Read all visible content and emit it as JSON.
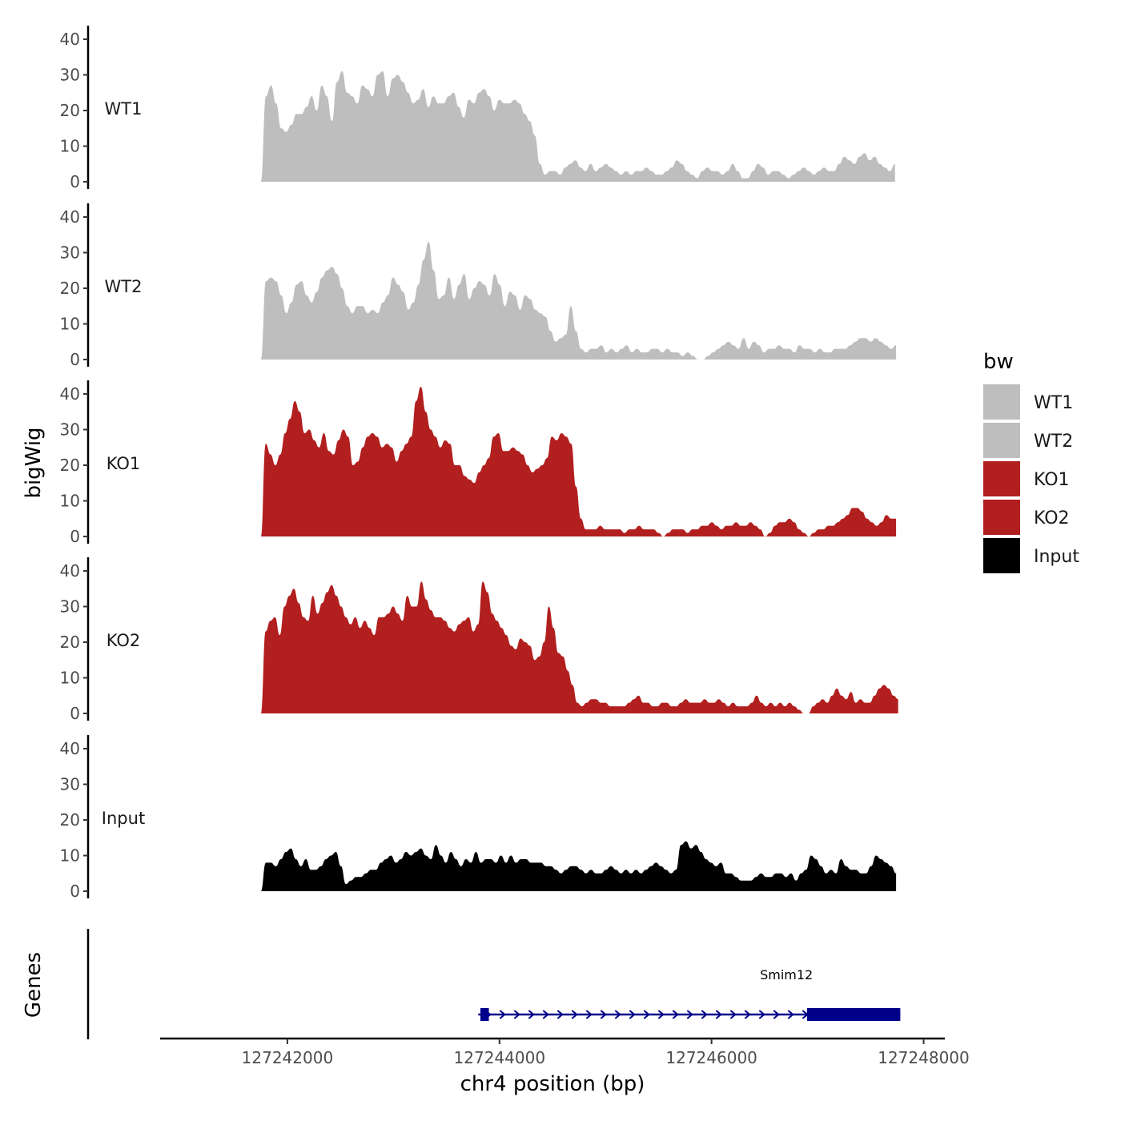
{
  "chart_data": {
    "type": "area",
    "xlabel": "chr4 position (bp)",
    "ylabel": "bigWig",
    "genes_label": "Genes",
    "x_ticks": [
      127242000,
      127244000,
      127246000,
      127248000
    ],
    "x_tick_labels": [
      "127242000",
      "127244000",
      "127246000",
      "127248000"
    ],
    "y_ticks": [
      0,
      10,
      20,
      30,
      40
    ],
    "y_tick_labels": [
      "0",
      "10",
      "20",
      "30",
      "40"
    ],
    "ylim": [
      0,
      44
    ],
    "xlim": [
      127240800,
      127248200
    ],
    "legend": {
      "title": "bw",
      "position": "right",
      "entries": [
        {
          "label": "WT1",
          "color": "#bebebe"
        },
        {
          "label": "WT2",
          "color": "#bebebe"
        },
        {
          "label": "KO1",
          "color": "#b21f1f"
        },
        {
          "label": "KO2",
          "color": "#b21f1f"
        },
        {
          "label": "Input",
          "color": "#000000"
        }
      ]
    },
    "series": [
      {
        "name": "WT1",
        "color": "#bebebe",
        "x_start": 127241750,
        "x_end": 127247730,
        "values": [
          0,
          24,
          27,
          22,
          15,
          14,
          16,
          19,
          19,
          21,
          24,
          20,
          27,
          24,
          17,
          28,
          31,
          25,
          24,
          22,
          27,
          26,
          24,
          30,
          31,
          24,
          29,
          30,
          28,
          25,
          22,
          23,
          26,
          21,
          24,
          22,
          22,
          24,
          25,
          21,
          18,
          23,
          22,
          25,
          26,
          24,
          20,
          23,
          22,
          22,
          23,
          22,
          19,
          17,
          13,
          5,
          2,
          3,
          3,
          2,
          4,
          5,
          6,
          4,
          3,
          5,
          3,
          4,
          5,
          4,
          3,
          2,
          3,
          2,
          3,
          3,
          4,
          3,
          2,
          2,
          3,
          4,
          6,
          5,
          3,
          2,
          1,
          3,
          4,
          3,
          3,
          2,
          3,
          5,
          3,
          1,
          1,
          3,
          5,
          4,
          2,
          3,
          3,
          2,
          1,
          2,
          3,
          4,
          3,
          2,
          3,
          4,
          3,
          3,
          5,
          7,
          6,
          5,
          7,
          8,
          6,
          7,
          5,
          4,
          3,
          5
        ]
      },
      {
        "name": "WT2",
        "color": "#bebebe",
        "x_start": 127241750,
        "x_end": 127247740,
        "values": [
          0,
          22,
          23,
          22,
          18,
          13,
          16,
          21,
          22,
          18,
          16,
          19,
          23,
          25,
          26,
          24,
          20,
          15,
          13,
          15,
          15,
          13,
          14,
          13,
          16,
          18,
          23,
          21,
          19,
          14,
          16,
          21,
          28,
          33,
          25,
          17,
          18,
          23,
          17,
          21,
          24,
          17,
          20,
          22,
          21,
          18,
          24,
          21,
          15,
          19,
          18,
          14,
          18,
          17,
          14,
          13,
          12,
          8,
          5,
          6,
          7,
          15,
          8,
          3,
          2,
          3,
          3,
          4,
          2,
          3,
          2,
          3,
          4,
          2,
          3,
          2,
          2,
          3,
          3,
          2,
          3,
          2,
          2,
          1,
          2,
          1,
          0,
          0,
          1,
          2,
          3,
          4,
          5,
          4,
          3,
          6,
          3,
          5,
          4,
          2,
          3,
          3,
          4,
          3,
          3,
          2,
          4,
          3,
          3,
          2,
          3,
          2,
          2,
          3,
          3,
          3,
          4,
          5,
          6,
          6,
          5,
          6,
          5,
          4,
          3,
          4
        ]
      },
      {
        "name": "KO1",
        "color": "#b21f1f",
        "x_start": 127241750,
        "x_end": 127247740,
        "values": [
          0,
          26,
          23,
          20,
          23,
          29,
          33,
          38,
          35,
          29,
          30,
          27,
          25,
          29,
          24,
          23,
          27,
          30,
          28,
          20,
          21,
          25,
          28,
          29,
          28,
          25,
          26,
          25,
          21,
          24,
          26,
          28,
          38,
          42,
          35,
          30,
          28,
          25,
          27,
          26,
          20,
          20,
          17,
          16,
          15,
          18,
          20,
          22,
          28,
          29,
          24,
          24,
          25,
          24,
          23,
          20,
          18,
          19,
          20,
          22,
          28,
          27,
          29,
          28,
          26,
          14,
          5,
          2,
          2,
          2,
          3,
          2,
          2,
          2,
          2,
          1,
          2,
          2,
          3,
          2,
          2,
          2,
          1,
          0,
          1,
          2,
          2,
          2,
          1,
          2,
          2,
          3,
          3,
          4,
          3,
          2,
          3,
          3,
          4,
          3,
          3,
          4,
          3,
          2,
          0,
          1,
          3,
          4,
          4,
          5,
          4,
          2,
          1,
          0,
          1,
          2,
          2,
          3,
          3,
          4,
          5,
          6,
          8,
          8,
          7,
          5,
          4,
          3,
          4,
          6,
          5,
          5
        ]
      },
      {
        "name": "KO2",
        "color": "#b21f1f",
        "x_start": 127241750,
        "x_end": 127247760,
        "values": [
          0,
          23,
          26,
          27,
          22,
          30,
          33,
          35,
          31,
          27,
          26,
          33,
          28,
          31,
          34,
          36,
          33,
          30,
          27,
          25,
          27,
          24,
          26,
          24,
          22,
          27,
          27,
          28,
          30,
          28,
          26,
          33,
          30,
          30,
          37,
          32,
          29,
          27,
          27,
          26,
          24,
          23,
          25,
          26,
          27,
          23,
          25,
          37,
          34,
          28,
          26,
          24,
          22,
          19,
          18,
          21,
          20,
          19,
          15,
          16,
          20,
          30,
          24,
          17,
          16,
          12,
          8,
          3,
          2,
          3,
          4,
          4,
          3,
          3,
          2,
          2,
          2,
          2,
          3,
          4,
          5,
          3,
          3,
          2,
          2,
          3,
          3,
          2,
          2,
          3,
          4,
          3,
          3,
          3,
          4,
          3,
          3,
          4,
          3,
          2,
          3,
          2,
          2,
          2,
          3,
          5,
          3,
          2,
          3,
          2,
          3,
          2,
          3,
          2,
          1,
          0,
          0,
          2,
          3,
          4,
          3,
          5,
          7,
          5,
          4,
          6,
          3,
          4,
          3,
          3,
          5,
          7,
          8,
          7,
          5,
          4
        ]
      },
      {
        "name": "Input",
        "color": "#000000",
        "x_start": 127241750,
        "x_end": 127247740,
        "values": [
          0,
          8,
          8,
          7,
          9,
          11,
          12,
          9,
          7,
          9,
          6,
          6,
          7,
          9,
          10,
          11,
          7,
          2,
          3,
          4,
          4,
          5,
          6,
          6,
          8,
          9,
          10,
          8,
          9,
          11,
          10,
          11,
          12,
          10,
          9,
          13,
          10,
          8,
          11,
          9,
          7,
          9,
          8,
          11,
          8,
          9,
          9,
          8,
          10,
          8,
          10,
          8,
          9,
          9,
          8,
          8,
          8,
          7,
          7,
          6,
          5,
          6,
          7,
          7,
          6,
          5,
          6,
          5,
          5,
          6,
          7,
          6,
          5,
          6,
          5,
          6,
          5,
          6,
          7,
          8,
          7,
          6,
          5,
          6,
          13,
          14,
          12,
          13,
          11,
          9,
          8,
          7,
          8,
          5,
          5,
          4,
          3,
          3,
          3,
          4,
          5,
          4,
          4,
          5,
          5,
          4,
          5,
          3,
          5,
          6,
          10,
          9,
          7,
          5,
          6,
          5,
          9,
          7,
          6,
          6,
          5,
          5,
          7,
          10,
          9,
          8,
          7,
          5
        ]
      }
    ],
    "genes": [
      {
        "name": "Smim12",
        "strand": "+",
        "start": 127243800,
        "end": 127247780,
        "exons": [
          {
            "start": 127243820,
            "end": 127243900
          },
          {
            "start": 127246900,
            "end": 127247780
          }
        ]
      }
    ]
  }
}
